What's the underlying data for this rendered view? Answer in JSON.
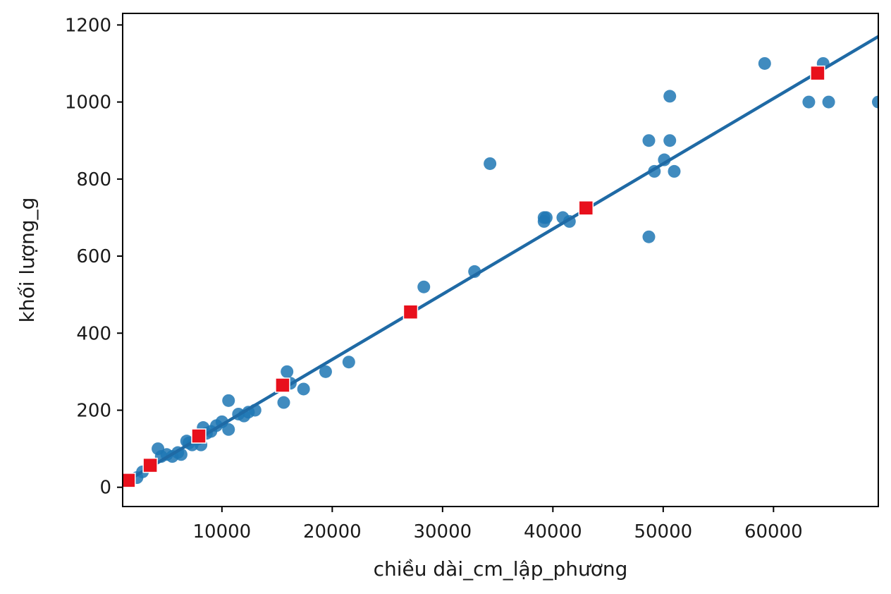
{
  "chart_data": {
    "type": "scatter",
    "xlabel": "chiều dài_cm_lập_phương",
    "ylabel": "khối lượng_g",
    "xlim": [
      1000,
      69500
    ],
    "ylim": [
      -50,
      1230
    ],
    "x_ticks": [
      10000,
      20000,
      30000,
      40000,
      50000,
      60000
    ],
    "y_ticks": [
      0,
      200,
      400,
      600,
      800,
      1000,
      1200
    ],
    "grid": false,
    "legend": "none",
    "colors": {
      "points": "#1f77b4",
      "line": "#1f6aa5",
      "predicted": "#e8101c"
    },
    "series": [
      {
        "kind": "points",
        "x": [
          1500,
          2300,
          2800,
          3500,
          4200,
          4500,
          5000,
          5500,
          6000,
          6300,
          6800,
          7000,
          7300,
          7800,
          8100,
          8300,
          8600,
          9000,
          9500,
          10000,
          10600,
          10600,
          11500,
          12000,
          12400,
          13000,
          15600,
          15900,
          16200,
          17400,
          19400,
          21500,
          28300,
          32900,
          34300,
          39200,
          39200,
          39400,
          40900,
          41500,
          48700,
          48700,
          49200,
          50100,
          50600,
          50600,
          51000,
          59200,
          63200,
          64500,
          65000,
          69500
        ],
        "y": [
          15,
          25,
          40,
          60,
          100,
          80,
          85,
          80,
          90,
          85,
          120,
          115,
          110,
          125,
          110,
          155,
          140,
          145,
          160,
          170,
          225,
          150,
          190,
          185,
          195,
          200,
          220,
          300,
          270,
          255,
          300,
          325,
          520,
          560,
          840,
          700,
          690,
          700,
          700,
          690,
          900,
          650,
          820,
          850,
          1015,
          900,
          820,
          1100,
          1000,
          1100,
          1000,
          1000
        ]
      },
      {
        "kind": "fit-line",
        "x": [
          1000,
          69500
        ],
        "y": [
          10,
          1170
        ]
      },
      {
        "kind": "predicted",
        "x": [
          1500,
          3500,
          7900,
          15500,
          27100,
          43000,
          64000
        ],
        "y": [
          18,
          57,
          133,
          265,
          455,
          725,
          1075
        ]
      }
    ]
  }
}
